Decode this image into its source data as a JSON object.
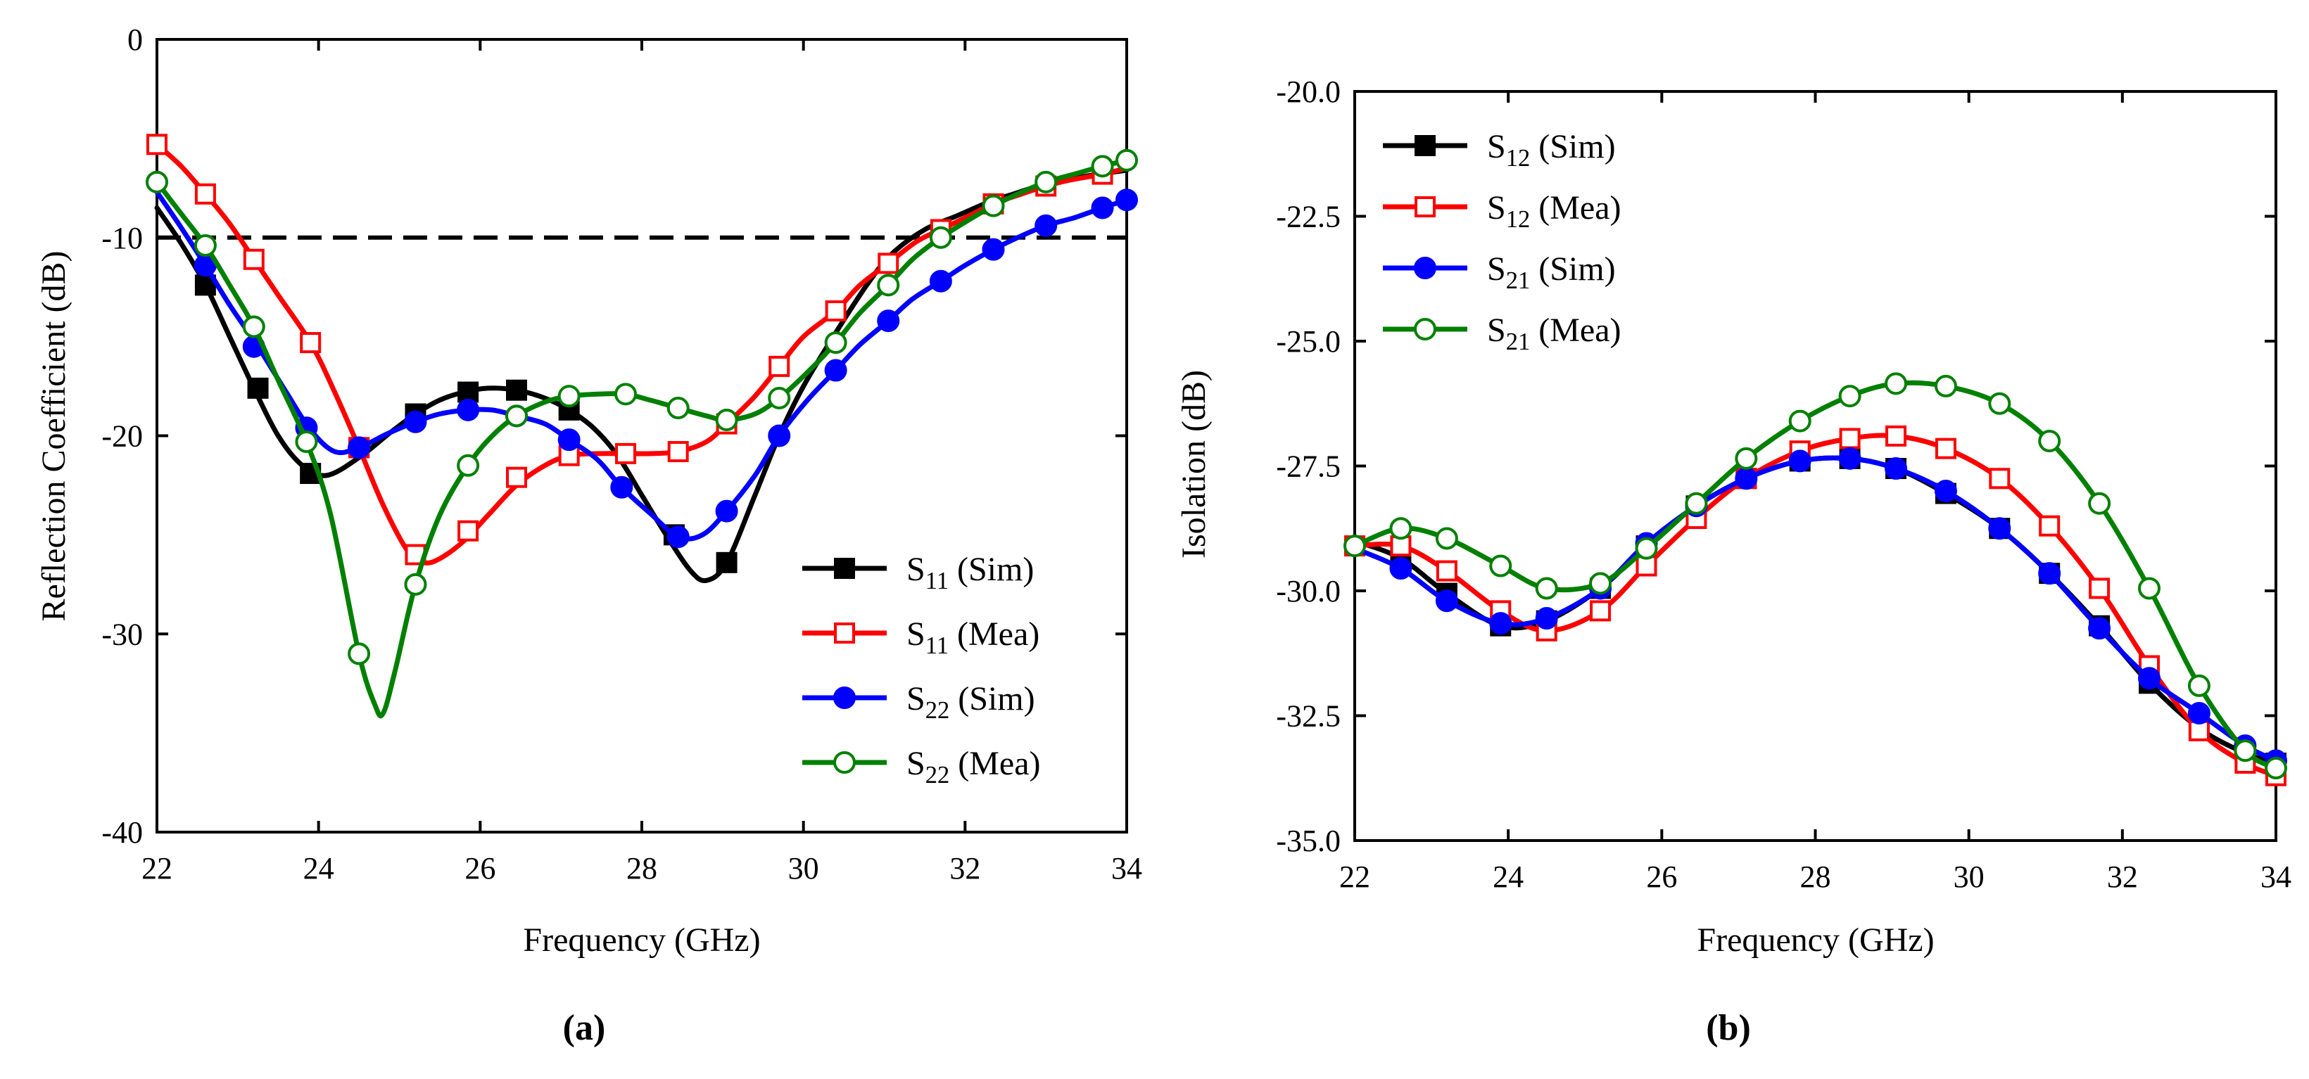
{
  "chart_data": [
    {
      "type": "line",
      "panel_label": "(a)",
      "xlabel": "Frequency (GHz)",
      "ylabel": "Reflection Coefficient (dB)",
      "xlim": [
        22,
        34
      ],
      "ylim": [
        -40,
        0
      ],
      "xticks": [
        22,
        24,
        26,
        28,
        30,
        32,
        34
      ],
      "yticks": [
        -40,
        -30,
        -20,
        -10,
        0
      ],
      "xtick_labels": [
        "22",
        "24",
        "26",
        "28",
        "30",
        "32",
        "34"
      ],
      "ytick_labels": [
        "-40",
        "-30",
        "-20",
        "-10",
        "0"
      ],
      "reference_line": -10,
      "legend_position": "bottom-right",
      "series": [
        {
          "name": "S11 (Sim)",
          "base": "S",
          "sub": "11",
          "suffix": " (Sim)",
          "color": "#000000",
          "marker": "square-filled",
          "x": [
            22,
            22.3,
            22.6,
            22.9,
            23.2,
            23.5,
            23.8,
            24.1,
            24.5,
            24.9,
            25.2,
            25.5,
            25.8,
            26.1,
            26.45,
            26.8,
            27.1,
            27.4,
            27.7,
            28.0,
            28.3,
            28.6,
            28.8,
            29.05,
            29.4,
            29.7,
            30.0,
            30.4,
            30.8,
            31.1,
            31.5,
            31.9,
            32.3,
            32.6,
            33.0,
            33.5,
            34.0
          ],
          "y": [
            -8.5,
            -10.3,
            -12.4,
            -15.0,
            -17.6,
            -20.0,
            -21.5,
            -22.0,
            -21.1,
            -19.8,
            -18.9,
            -18.2,
            -17.8,
            -17.6,
            -17.7,
            -18.1,
            -18.7,
            -19.6,
            -21.0,
            -23.0,
            -25.0,
            -26.8,
            -27.3,
            -26.4,
            -23.0,
            -20.0,
            -17.5,
            -14.8,
            -12.3,
            -10.8,
            -9.6,
            -8.9,
            -8.2,
            -7.8,
            -7.3,
            -6.9,
            -6.6
          ],
          "markers_x": [
            22.6,
            23.25,
            23.9,
            24.5,
            25.2,
            25.85,
            26.45,
            27.1,
            28.4,
            29.05
          ],
          "markers_y": [
            -12.4,
            -17.6,
            -21.9,
            -20.6,
            -18.9,
            -17.8,
            -17.7,
            -18.7,
            -25.0,
            -26.4
          ]
        },
        {
          "name": "S11 (Mea)",
          "base": "S",
          "sub": "11",
          "suffix": " (Mea)",
          "color": "#ff0000",
          "marker": "square-open",
          "x": [
            22,
            22.3,
            22.6,
            22.9,
            23.2,
            23.5,
            23.9,
            24.2,
            24.5,
            24.8,
            25.1,
            25.3,
            25.5,
            25.8,
            26.1,
            26.45,
            26.8,
            27.1,
            27.45,
            27.8,
            28.1,
            28.45,
            28.8,
            29.05,
            29.4,
            29.7,
            30.0,
            30.4,
            30.7,
            31.05,
            31.4,
            31.7,
            32.0,
            32.35,
            32.7,
            33.0,
            33.3,
            33.7,
            34.0
          ],
          "y": [
            -5.3,
            -6.4,
            -7.8,
            -9.3,
            -11.1,
            -12.9,
            -15.3,
            -17.8,
            -20.6,
            -23.5,
            -25.8,
            -26.4,
            -26.2,
            -25.3,
            -24.0,
            -22.5,
            -21.5,
            -21.0,
            -20.9,
            -20.9,
            -20.9,
            -20.8,
            -20.3,
            -19.4,
            -18.0,
            -16.5,
            -15.0,
            -13.7,
            -12.4,
            -11.3,
            -10.2,
            -9.6,
            -9.0,
            -8.3,
            -7.8,
            -7.4,
            -7.1,
            -6.8,
            -6.5
          ],
          "markers_x": [
            22,
            22.6,
            23.2,
            23.9,
            24.5,
            25.2,
            25.85,
            26.45,
            27.1,
            27.8,
            28.45,
            29.05,
            29.7,
            30.4,
            31.05,
            31.7,
            32.35,
            33.0,
            33.7
          ],
          "markers_y": [
            -5.3,
            -7.8,
            -11.1,
            -15.3,
            -20.6,
            -26.0,
            -24.8,
            -22.1,
            -21.0,
            -20.9,
            -20.8,
            -19.4,
            -16.5,
            -13.7,
            -11.3,
            -9.6,
            -8.3,
            -7.4,
            -6.8
          ]
        },
        {
          "name": "S22 (Sim)",
          "base": "S",
          "sub": "22",
          "suffix": " (Sim)",
          "color": "#0000ff",
          "marker": "circle-filled",
          "x": [
            22,
            22.3,
            22.6,
            22.9,
            23.25,
            23.6,
            23.9,
            24.2,
            24.5,
            24.85,
            25.2,
            25.5,
            25.85,
            26.15,
            26.45,
            26.8,
            27.1,
            27.45,
            27.75,
            28.1,
            28.45,
            28.75,
            29.05,
            29.4,
            29.7,
            30.05,
            30.4,
            30.7,
            31.05,
            31.35,
            31.7,
            32.0,
            32.35,
            32.65,
            33.0,
            33.35,
            33.7,
            34.0
          ],
          "y": [
            -7.7,
            -9.5,
            -11.4,
            -13.4,
            -15.5,
            -17.8,
            -19.7,
            -20.8,
            -20.6,
            -19.9,
            -19.3,
            -18.9,
            -18.7,
            -18.7,
            -19.0,
            -19.4,
            -20.2,
            -21.2,
            -22.6,
            -23.9,
            -25.1,
            -25.0,
            -23.8,
            -22.0,
            -20.0,
            -18.2,
            -16.7,
            -15.4,
            -14.2,
            -13.1,
            -12.2,
            -11.4,
            -10.6,
            -10.0,
            -9.4,
            -9.0,
            -8.5,
            -8.1
          ],
          "markers_x": [
            22.6,
            23.2,
            23.85,
            24.5,
            25.2,
            25.85,
            26.45,
            27.1,
            27.75,
            28.45,
            29.05,
            29.7,
            30.4,
            31.05,
            31.7,
            32.35,
            33.0,
            33.7,
            34.0
          ],
          "markers_y": [
            -11.4,
            -15.5,
            -19.6,
            -20.6,
            -19.3,
            -18.7,
            -19.0,
            -20.2,
            -22.6,
            -25.1,
            -23.8,
            -20.0,
            -16.7,
            -14.2,
            -12.2,
            -10.6,
            -9.4,
            -8.5,
            -8.1
          ]
        },
        {
          "name": "S22 (Mea)",
          "base": "S",
          "sub": "22",
          "suffix": " (Mea)",
          "color": "#008000",
          "marker": "circle-open",
          "x": [
            22,
            22.3,
            22.6,
            22.9,
            23.2,
            23.5,
            23.85,
            24.15,
            24.5,
            24.7,
            24.8,
            24.95,
            25.2,
            25.5,
            25.85,
            26.15,
            26.45,
            26.8,
            27.1,
            27.45,
            27.8,
            28.1,
            28.45,
            28.8,
            29.05,
            29.4,
            29.7,
            30.05,
            30.4,
            30.7,
            31.05,
            31.35,
            31.7,
            32.05,
            32.35,
            32.65,
            33.0,
            33.35,
            33.7,
            34.0
          ],
          "y": [
            -7.2,
            -8.8,
            -10.4,
            -12.4,
            -14.5,
            -17.2,
            -20.3,
            -24.0,
            -31.0,
            -33.6,
            -34.0,
            -31.8,
            -27.5,
            -24.0,
            -21.5,
            -20.0,
            -19.0,
            -18.3,
            -18.0,
            -17.9,
            -17.9,
            -18.2,
            -18.6,
            -19.0,
            -19.2,
            -18.9,
            -18.1,
            -16.8,
            -15.3,
            -13.8,
            -12.4,
            -11.1,
            -10.0,
            -9.1,
            -8.4,
            -7.8,
            -7.2,
            -6.8,
            -6.4,
            -6.1
          ],
          "markers_x": [
            22,
            22.6,
            23.2,
            23.85,
            24.5,
            25.2,
            25.85,
            26.45,
            27.1,
            27.8,
            28.45,
            29.05,
            29.7,
            30.4,
            31.05,
            31.7,
            32.35,
            33.0,
            33.7,
            34.0
          ],
          "markers_y": [
            -7.2,
            -10.4,
            -14.5,
            -20.3,
            -31.0,
            -27.5,
            -21.5,
            -19.0,
            -18.0,
            -17.9,
            -18.6,
            -19.2,
            -18.1,
            -15.3,
            -12.4,
            -10.0,
            -8.4,
            -7.2,
            -6.4,
            -6.1
          ]
        }
      ]
    },
    {
      "type": "line",
      "panel_label": "(b)",
      "xlabel": "Frequency (GHz)",
      "ylabel": "Isolation (dB)",
      "xlim": [
        22,
        34
      ],
      "ylim": [
        -35,
        -20
      ],
      "xticks": [
        22,
        24,
        26,
        28,
        30,
        32,
        34
      ],
      "yticks": [
        -35,
        -32.5,
        -30,
        -27.5,
        -25,
        -22.5,
        -20
      ],
      "xtick_labels": [
        "22",
        "24",
        "26",
        "28",
        "30",
        "32",
        "34"
      ],
      "ytick_labels": [
        "-35.0",
        "-32.5",
        "-30.0",
        "-27.5",
        "-25.0",
        "-22.5",
        "-20.0"
      ],
      "legend_position": "top-left",
      "series": [
        {
          "name": "S12 (Sim)",
          "base": "S",
          "sub": "12",
          "suffix": " (Sim)",
          "color": "#000000",
          "marker": "square-filled",
          "x": [
            22,
            22.6,
            23.2,
            23.9,
            24.5,
            25.2,
            25.8,
            26.45,
            27.1,
            27.8,
            28.45,
            29.05,
            29.7,
            30.4,
            31.05,
            31.7,
            32.35,
            33.0,
            33.6,
            34.0
          ],
          "y": [
            -29.0,
            -29.35,
            -30.05,
            -30.7,
            -30.6,
            -29.95,
            -29.1,
            -28.3,
            -27.75,
            -27.4,
            -27.35,
            -27.55,
            -28.05,
            -28.75,
            -29.65,
            -30.7,
            -31.85,
            -32.75,
            -33.25,
            -33.45
          ],
          "markers_x": [
            22.6,
            23.2,
            23.9,
            24.5,
            25.2,
            25.8,
            26.45,
            27.1,
            27.8,
            28.45,
            29.05,
            29.7,
            30.4,
            31.05,
            31.7,
            32.35,
            33.0,
            33.6,
            34.0
          ],
          "markers_y": [
            -29.35,
            -30.05,
            -30.7,
            -30.6,
            -29.95,
            -29.1,
            -28.3,
            -27.75,
            -27.4,
            -27.35,
            -27.55,
            -28.05,
            -28.75,
            -29.65,
            -30.7,
            -31.85,
            -32.75,
            -33.25,
            -33.45
          ]
        },
        {
          "name": "S12 (Mea)",
          "base": "S",
          "sub": "12",
          "suffix": " (Mea)",
          "color": "#ff0000",
          "marker": "square-open",
          "x": [
            22,
            22.6,
            23.2,
            23.9,
            24.5,
            25.2,
            25.8,
            26.45,
            27.1,
            27.8,
            28.45,
            29.05,
            29.7,
            30.4,
            31.05,
            31.7,
            32.35,
            33.0,
            33.6,
            34.0
          ],
          "y": [
            -29.1,
            -29.1,
            -29.6,
            -30.4,
            -30.8,
            -30.4,
            -29.5,
            -28.55,
            -27.75,
            -27.2,
            -26.95,
            -26.9,
            -27.15,
            -27.75,
            -28.7,
            -29.95,
            -31.5,
            -32.8,
            -33.45,
            -33.7
          ],
          "markers_x": [
            22,
            22.6,
            23.2,
            23.9,
            24.5,
            25.2,
            25.8,
            26.45,
            27.1,
            27.8,
            28.45,
            29.05,
            29.7,
            30.4,
            31.05,
            31.7,
            32.35,
            33.0,
            33.6,
            34.0
          ],
          "markers_y": [
            -29.1,
            -29.1,
            -29.6,
            -30.4,
            -30.8,
            -30.4,
            -29.5,
            -28.55,
            -27.75,
            -27.2,
            -26.95,
            -26.9,
            -27.15,
            -27.75,
            -28.7,
            -29.95,
            -31.5,
            -32.8,
            -33.45,
            -33.7
          ]
        },
        {
          "name": "S21 (Sim)",
          "base": "S",
          "sub": "21",
          "suffix": " (Sim)",
          "color": "#0000ff",
          "marker": "circle-filled",
          "x": [
            22,
            22.6,
            23.2,
            23.9,
            24.5,
            25.2,
            25.8,
            26.45,
            27.1,
            27.8,
            28.45,
            29.05,
            29.7,
            30.4,
            31.05,
            31.7,
            32.35,
            33.0,
            33.6,
            34.0
          ],
          "y": [
            -29.15,
            -29.55,
            -30.2,
            -30.65,
            -30.55,
            -29.95,
            -29.05,
            -28.3,
            -27.75,
            -27.4,
            -27.35,
            -27.55,
            -28.0,
            -28.75,
            -29.65,
            -30.75,
            -31.75,
            -32.45,
            -33.1,
            -33.4
          ],
          "markers_x": [
            22.6,
            23.2,
            23.9,
            24.5,
            25.2,
            25.8,
            26.45,
            27.1,
            27.8,
            28.45,
            29.05,
            29.7,
            30.4,
            31.05,
            31.7,
            32.35,
            33.0,
            33.6,
            34.0
          ],
          "markers_y": [
            -29.55,
            -30.2,
            -30.65,
            -30.55,
            -29.95,
            -29.05,
            -28.3,
            -27.75,
            -27.4,
            -27.35,
            -27.55,
            -28.0,
            -28.75,
            -29.65,
            -30.75,
            -31.75,
            -32.45,
            -33.1,
            -33.4
          ]
        },
        {
          "name": "S21 (Mea)",
          "base": "S",
          "sub": "21",
          "suffix": " (Mea)",
          "color": "#008000",
          "marker": "circle-open",
          "x": [
            22,
            22.6,
            23.2,
            23.9,
            24.5,
            25.2,
            25.8,
            26.45,
            27.1,
            27.8,
            28.45,
            29.05,
            29.7,
            30.4,
            31.05,
            31.7,
            32.35,
            33.0,
            33.6,
            34.0
          ],
          "y": [
            -29.1,
            -28.75,
            -28.95,
            -29.5,
            -29.95,
            -29.85,
            -29.15,
            -28.25,
            -27.35,
            -26.6,
            -26.1,
            -25.85,
            -25.9,
            -26.25,
            -27.0,
            -28.25,
            -29.95,
            -31.9,
            -33.2,
            -33.55
          ],
          "markers_x": [
            22,
            22.6,
            23.2,
            23.9,
            24.5,
            25.2,
            25.8,
            26.45,
            27.1,
            27.8,
            28.45,
            29.05,
            29.7,
            30.4,
            31.05,
            31.7,
            32.35,
            33.0,
            33.6,
            34.0
          ],
          "markers_y": [
            -29.1,
            -28.75,
            -28.95,
            -29.5,
            -29.95,
            -29.85,
            -29.15,
            -28.25,
            -27.35,
            -26.6,
            -26.1,
            -25.85,
            -25.9,
            -26.25,
            -27.0,
            -28.25,
            -29.95,
            -31.9,
            -33.2,
            -33.55
          ]
        }
      ]
    }
  ]
}
